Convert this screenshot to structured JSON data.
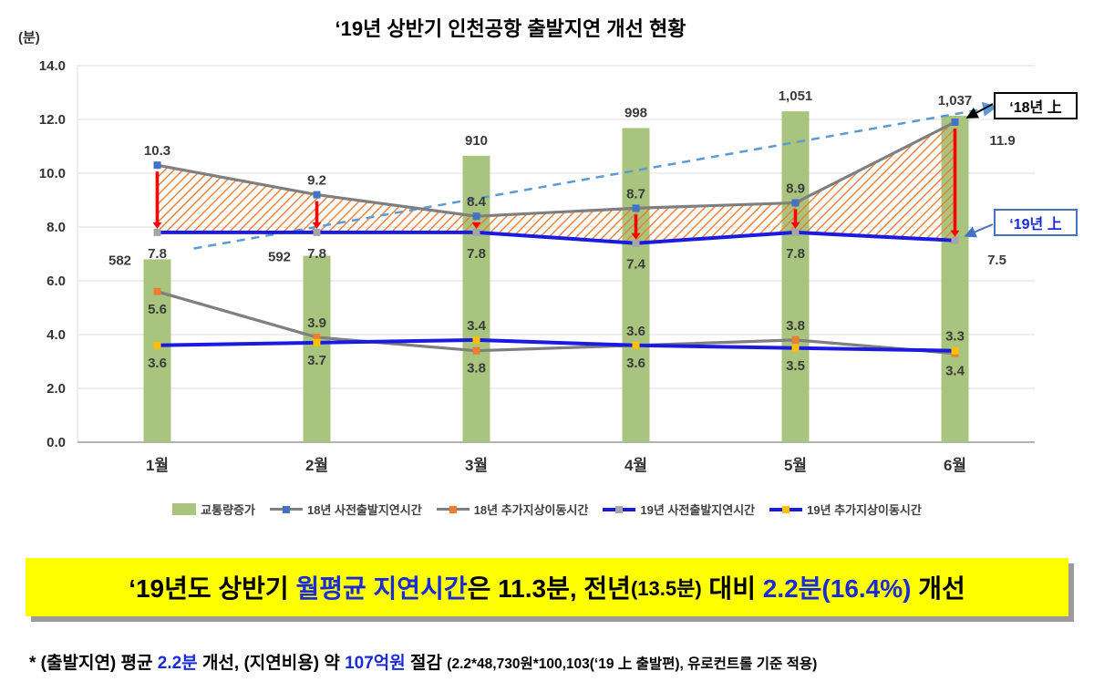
{
  "page": {
    "title": "‘19년 상반기 인천공항 출발지연 개선 현황",
    "y_axis_unit_label": "(분)"
  },
  "chart_data": {
    "type": "combo: bar + line",
    "title": "‘19년 상반기 인천공항 출발지연 개선 현황",
    "categories": [
      "1월",
      "2월",
      "3월",
      "4월",
      "5월",
      "6월"
    ],
    "y_axis": {
      "unit": "(분)",
      "min": 0,
      "max": 14,
      "step": 2,
      "tick_labels": [
        "0.0",
        "2.0",
        "4.0",
        "6.0",
        "8.0",
        "10.0",
        "12.0",
        "14.0"
      ],
      "grid": true
    },
    "bar_series": {
      "name": "교통량증가",
      "color": "#A8C47E",
      "values": [
        582,
        592,
        910,
        998,
        1051,
        1037
      ],
      "value_labels": [
        "582",
        "592",
        "910",
        "998",
        "1,051",
        "1,037"
      ],
      "plotted_heights": [
        6.8,
        6.93,
        10.65,
        11.68,
        12.3,
        12.14
      ]
    },
    "line_series": [
      {
        "name": "18년 사전출발지연시간",
        "line_color": "#7F7F7F",
        "marker_color": "#4472C4",
        "values": [
          10.3,
          9.2,
          8.4,
          8.7,
          8.9,
          11.9
        ],
        "label_position": "above"
      },
      {
        "name": "18년 추가지상이동시간",
        "line_color": "#7F7F7F",
        "marker_color": "#ED7D31",
        "values": [
          5.6,
          3.9,
          3.4,
          3.6,
          3.8,
          3.3
        ],
        "label_position": "above"
      },
      {
        "name": "19년 사전출발지연시간",
        "line_color": "#1A1AE0",
        "marker_color": "#A6A6A6",
        "values": [
          7.8,
          7.8,
          7.8,
          7.4,
          7.8,
          7.5
        ],
        "label_position": "below",
        "thick": true
      },
      {
        "name": "19년 추가지상이동시간",
        "line_color": "#1A1AE0",
        "marker_color": "#FFC000",
        "values": [
          3.6,
          3.7,
          3.8,
          3.6,
          3.5,
          3.4
        ],
        "label_position": "below",
        "thick": true
      }
    ],
    "annotations": {
      "label_18": "‘18년 上",
      "label_19": "‘19년 上",
      "improvement_arrows_color": "#FF0000",
      "trend_arrow_color": "#5B9BD5",
      "hatch_color": "#ED7D31"
    },
    "legend_position": "bottom"
  },
  "legend": [
    {
      "type": "bar",
      "label": "교통량증가",
      "color": "#A8C47E"
    },
    {
      "type": "line",
      "label": "18년 사전출발지연시간",
      "line": "#7F7F7F",
      "marker": "#4472C4"
    },
    {
      "type": "line",
      "label": "18년 추가지상이동시간",
      "line": "#7F7F7F",
      "marker": "#ED7D31"
    },
    {
      "type": "line",
      "label": "19년 사전출발지연시간",
      "line": "#1A1AE0",
      "marker": "#A6A6A6",
      "thick": true
    },
    {
      "type": "line",
      "label": "19년 추가지상이동시간",
      "line": "#1A1AE0",
      "marker": "#FFC000",
      "thick": true
    }
  ],
  "banner": {
    "background": "#FFFF00",
    "segments": [
      {
        "text": "‘19년도 상반기 ",
        "color": "#000000"
      },
      {
        "text": "월평균 지연시간",
        "color": "#1A2BD8"
      },
      {
        "text": "은 ",
        "color": "#000000"
      },
      {
        "text": "11.3분, 전년",
        "color": "#000000"
      },
      {
        "text": "(13.5분)",
        "color": "#000000",
        "small": true
      },
      {
        "text": " 대비 ",
        "color": "#000000"
      },
      {
        "text": "2.2분(16.4%)",
        "color": "#1A2BD8"
      },
      {
        "text": " 개선",
        "color": "#000000"
      }
    ]
  },
  "footnote": {
    "segments": [
      {
        "text": "* (출발지연) 평균 ",
        "color": "#000000"
      },
      {
        "text": "2.2분",
        "color": "#1A2BD8"
      },
      {
        "text": " 개선, (지연비용) 약 ",
        "color": "#000000"
      },
      {
        "text": "107억원",
        "color": "#1A2BD8"
      },
      {
        "text": " 절감 ",
        "color": "#000000"
      },
      {
        "text": "(2.2*48,730원*100,103(‘19 上 출발편), 유로컨트롤 기준 적용)",
        "color": "#000000",
        "small": true
      }
    ]
  }
}
